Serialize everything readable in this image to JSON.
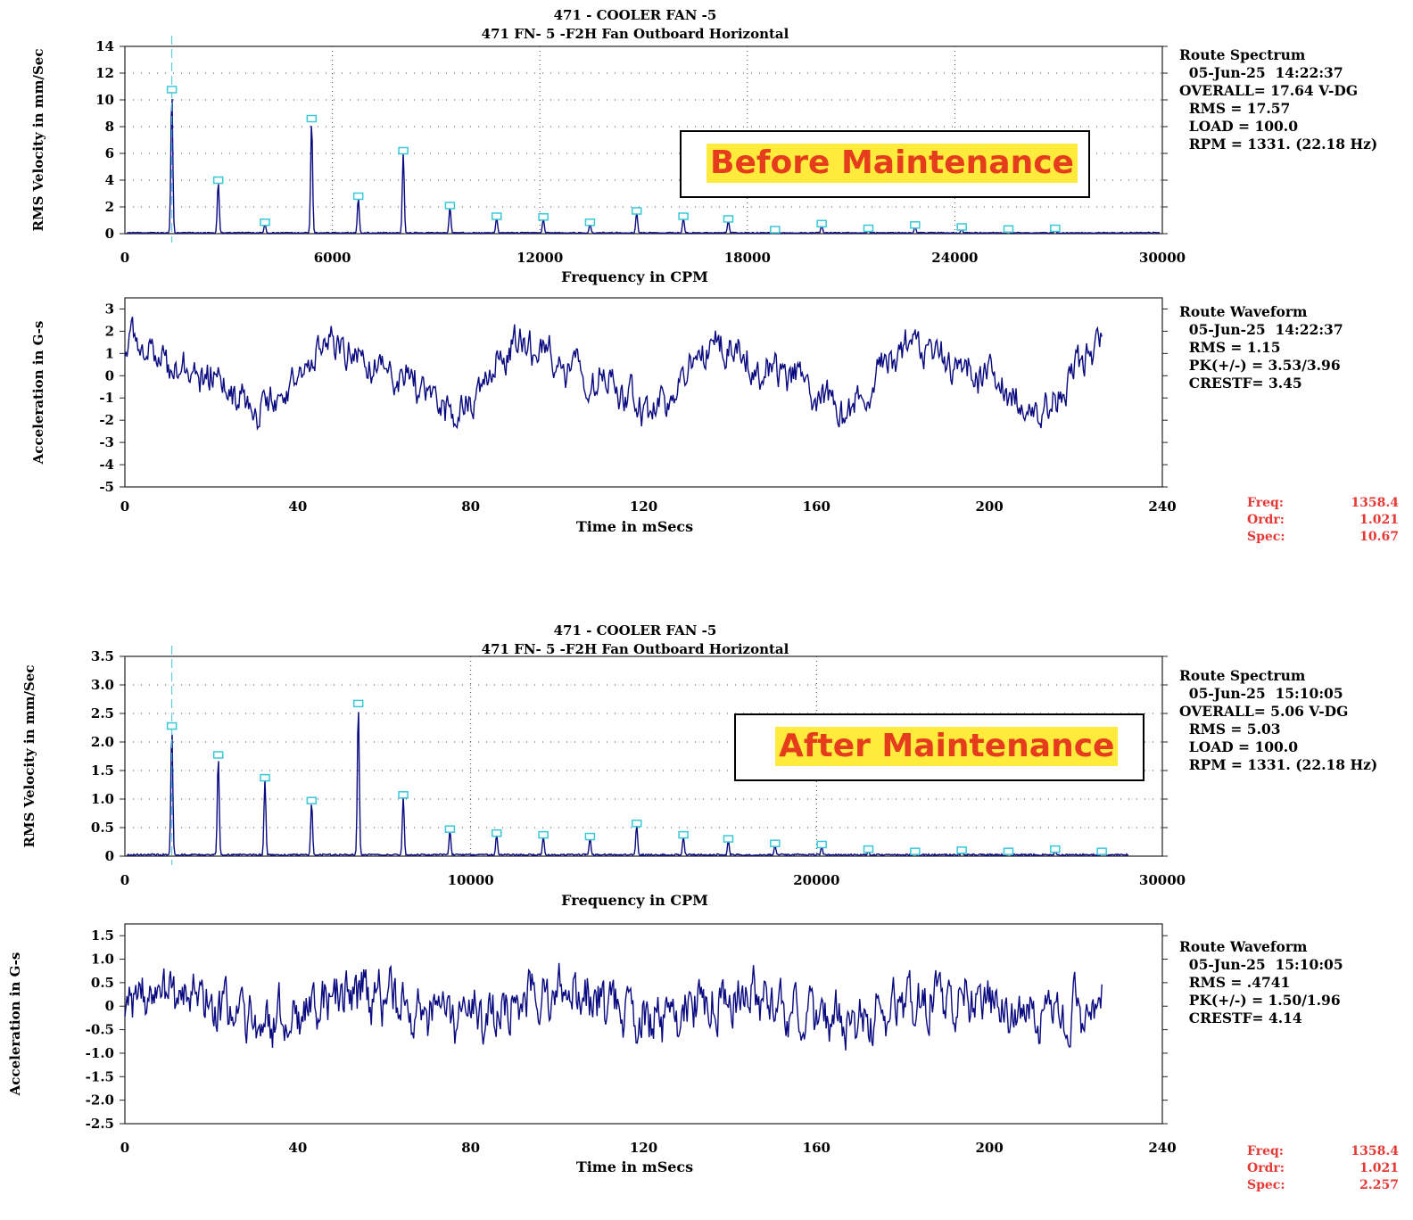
{
  "colors": {
    "trace": "#0a0a80",
    "marker": "#38c8d8",
    "cursor_text": "#e53935",
    "banner_fill": "#ffeb3b",
    "banner_text": "#e53c1e"
  },
  "before": {
    "banner": "Before Maintenance",
    "title_line1": "471  - COOLER FAN -5",
    "title_line2": "471 FN- 5 -F2H   Fan Outboard Horizontal",
    "spectrum_info": [
      "Route Spectrum",
      "  05-Jun-25  14:22:37",
      "OVERALL= 17.64 V-DG",
      "  RMS = 17.57",
      "  LOAD = 100.0",
      "  RPM = 1331. (22.18 Hz)"
    ],
    "waveform_info": [
      "Route Waveform",
      "  05-Jun-25  14:22:37",
      "  RMS = 1.15",
      "  PK(+/-) = 3.53/3.96",
      "  CRESTF= 3.45"
    ],
    "cursor": {
      "freq_label": "Freq:",
      "freq": "1358.4",
      "ordr_label": "Ordr:",
      "ordr": "1.021",
      "spec_label": "Spec:",
      "spec": "10.67"
    }
  },
  "after": {
    "banner": "After Maintenance",
    "title_line1": "471  - COOLER FAN -5",
    "title_line2": "471 FN- 5 -F2H   Fan Outboard Horizontal",
    "spectrum_info": [
      "Route Spectrum",
      "  05-Jun-25  15:10:05",
      "OVERALL= 5.06 V-DG",
      "  RMS = 5.03",
      "  LOAD = 100.0",
      "  RPM = 1331. (22.18 Hz)"
    ],
    "waveform_info": [
      "Route Waveform",
      "  05-Jun-25  15:10:05",
      "  RMS = .4741",
      "  PK(+/-) = 1.50/1.96",
      "  CRESTF= 4.14"
    ],
    "cursor": {
      "freq_label": "Freq:",
      "freq": "1358.4",
      "ordr_label": "Ordr:",
      "ordr": "1.021",
      "spec_label": "Spec:",
      "spec": "2.257"
    }
  },
  "chart_data": [
    {
      "id": "before_spectrum",
      "type": "line",
      "xlabel": "Frequency in CPM",
      "ylabel": "RMS Velocity in mm/Sec",
      "xlim": [
        0,
        30000
      ],
      "ylim": [
        0,
        14
      ],
      "xticks": [
        0,
        6000,
        12000,
        18000,
        24000,
        30000
      ],
      "yticks": [
        0,
        2,
        4,
        6,
        8,
        10,
        12,
        14
      ],
      "grid": true,
      "noise_floor": 0.08,
      "peaks": [
        {
          "x": 1358,
          "y": 10.67
        },
        {
          "x": 2700,
          "y": 3.9
        },
        {
          "x": 4050,
          "y": 0.75
        },
        {
          "x": 5400,
          "y": 8.5
        },
        {
          "x": 6750,
          "y": 2.7
        },
        {
          "x": 8050,
          "y": 6.1
        },
        {
          "x": 9400,
          "y": 2.0
        },
        {
          "x": 10750,
          "y": 1.2
        },
        {
          "x": 12100,
          "y": 1.15
        },
        {
          "x": 13450,
          "y": 0.75
        },
        {
          "x": 14800,
          "y": 1.6
        },
        {
          "x": 16150,
          "y": 1.2
        },
        {
          "x": 17450,
          "y": 1.0
        },
        {
          "x": 18800,
          "y": 0.2
        },
        {
          "x": 20150,
          "y": 0.65
        },
        {
          "x": 21500,
          "y": 0.3
        },
        {
          "x": 22850,
          "y": 0.55
        },
        {
          "x": 24200,
          "y": 0.4
        },
        {
          "x": 25550,
          "y": 0.25
        },
        {
          "x": 26900,
          "y": 0.3
        }
      ]
    },
    {
      "id": "before_waveform",
      "type": "line",
      "xlabel": "Time in mSecs",
      "ylabel": "Acceleration in G-s",
      "xlim": [
        0,
        240
      ],
      "ylim": [
        -5,
        3.5
      ],
      "xticks": [
        0,
        40,
        80,
        120,
        160,
        200,
        240
      ],
      "yticks": [
        -5,
        -4,
        -3,
        -2,
        -1,
        0,
        1,
        2,
        3
      ],
      "duration_ms": 226,
      "signal": [
        {
          "shape": "sine",
          "freq_hz": 22.18,
          "amplitude": 1.25,
          "phase": 0.8
        },
        {
          "shape": "sine",
          "freq_hz": 44.36,
          "amplitude": 0.5,
          "phase": 1.7
        },
        {
          "shape": "sine",
          "freq_hz": 155,
          "amplitude": 0.3,
          "phase": 0.4
        },
        {
          "shape": "noise",
          "amplitude": 0.65,
          "seed": 7
        }
      ]
    },
    {
      "id": "after_spectrum",
      "type": "line",
      "xlabel": "Frequency in CPM",
      "ylabel": "RMS Velocity in mm/Sec",
      "xlim": [
        0,
        30000
      ],
      "ylim": [
        0,
        3.5
      ],
      "xticks": [
        0,
        10000,
        20000,
        30000
      ],
      "yticks": [
        0,
        0.5,
        1.0,
        1.5,
        2.0,
        2.5,
        3.0,
        3.5
      ],
      "ytick_labels": [
        "0",
        "0.5",
        "1.0",
        "1.5",
        "2.0",
        "2.5",
        "3.0",
        "3.5"
      ],
      "grid": true,
      "noise_floor": 0.03,
      "peaks": [
        {
          "x": 1358,
          "y": 2.257
        },
        {
          "x": 2700,
          "y": 1.75
        },
        {
          "x": 4050,
          "y": 1.35
        },
        {
          "x": 5400,
          "y": 0.95
        },
        {
          "x": 6750,
          "y": 2.65
        },
        {
          "x": 8050,
          "y": 1.05
        },
        {
          "x": 9400,
          "y": 0.45
        },
        {
          "x": 10750,
          "y": 0.38
        },
        {
          "x": 12100,
          "y": 0.35
        },
        {
          "x": 13450,
          "y": 0.32
        },
        {
          "x": 14800,
          "y": 0.55
        },
        {
          "x": 16150,
          "y": 0.35
        },
        {
          "x": 17450,
          "y": 0.28
        },
        {
          "x": 18800,
          "y": 0.2
        },
        {
          "x": 20150,
          "y": 0.18
        },
        {
          "x": 21500,
          "y": 0.1
        },
        {
          "x": 22850,
          "y": 0.06
        },
        {
          "x": 24200,
          "y": 0.08
        },
        {
          "x": 25550,
          "y": 0.06
        },
        {
          "x": 26900,
          "y": 0.1
        },
        {
          "x": 28250,
          "y": 0.06
        }
      ]
    },
    {
      "id": "after_waveform",
      "type": "line",
      "xlabel": "Time in mSecs",
      "ylabel": "Acceleration in G-s",
      "xlim": [
        0,
        240
      ],
      "ylim": [
        -2.5,
        1.75
      ],
      "xticks": [
        0,
        40,
        80,
        120,
        160,
        200,
        240
      ],
      "yticks": [
        -2.5,
        -2.0,
        -1.5,
        -1.0,
        -0.5,
        0,
        0.5,
        1.0,
        1.5
      ],
      "ytick_labels": [
        "-2.5",
        "-2.0",
        "-1.5",
        "-1.0",
        "-0.5",
        "0",
        "0.5",
        "1.0",
        "1.5"
      ],
      "duration_ms": 226,
      "signal": [
        {
          "shape": "sine",
          "freq_hz": 22.18,
          "amplitude": 0.25,
          "phase": 0.3
        },
        {
          "shape": "sine",
          "freq_hz": 310,
          "amplitude": 0.18,
          "phase": 0.9
        },
        {
          "shape": "noise",
          "amplitude": 0.45,
          "seed": 19
        }
      ]
    }
  ]
}
